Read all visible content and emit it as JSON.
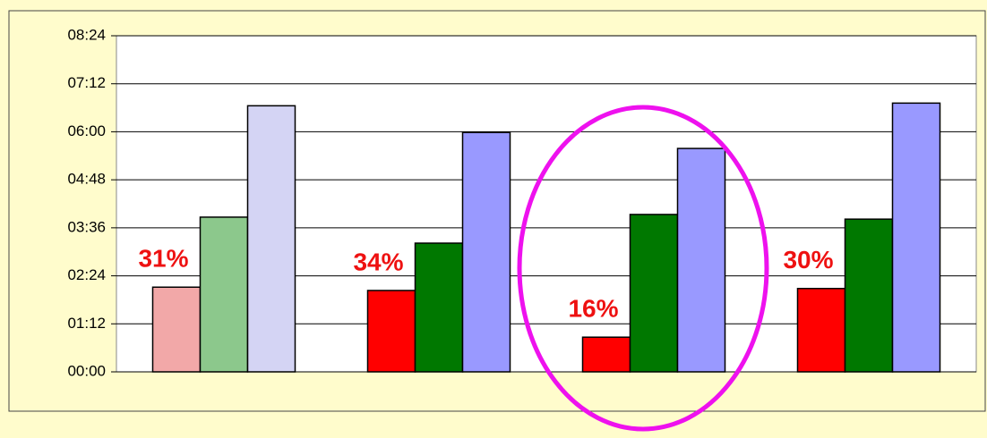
{
  "chart_data": {
    "type": "bar",
    "categories": [
      null,
      null,
      null,
      null
    ],
    "series": [
      {
        "colors": [
          "#f2a8a8",
          "#8cc88c",
          "#d4d4f4"
        ],
        "color": "#ff0000",
        "values": [
          127,
          122,
          52,
          125
        ]
      },
      {
        "colors": [
          "#8cc88c"
        ],
        "color": "#007800",
        "values": [
          232,
          193,
          236,
          229
        ]
      },
      {
        "colors": [
          "#d4d4f4"
        ],
        "color": "#9999ff",
        "values": [
          399,
          359,
          335,
          403
        ]
      }
    ],
    "annotations": [
      "31%",
      "34%",
      "16%",
      "30%"
    ],
    "highlight_category": 2,
    "ylim": [
      0,
      504
    ],
    "yticks": [
      {
        "value": 0,
        "label": "00:00"
      },
      {
        "value": 72,
        "label": "01:12"
      },
      {
        "value": 144,
        "label": "02:24"
      },
      {
        "value": 216,
        "label": "03:36"
      },
      {
        "value": 288,
        "label": "04:48"
      },
      {
        "value": 360,
        "label": "06:00"
      },
      {
        "value": 432,
        "label": "07:12"
      },
      {
        "value": 504,
        "label": "08:24"
      }
    ],
    "grid": true
  }
}
